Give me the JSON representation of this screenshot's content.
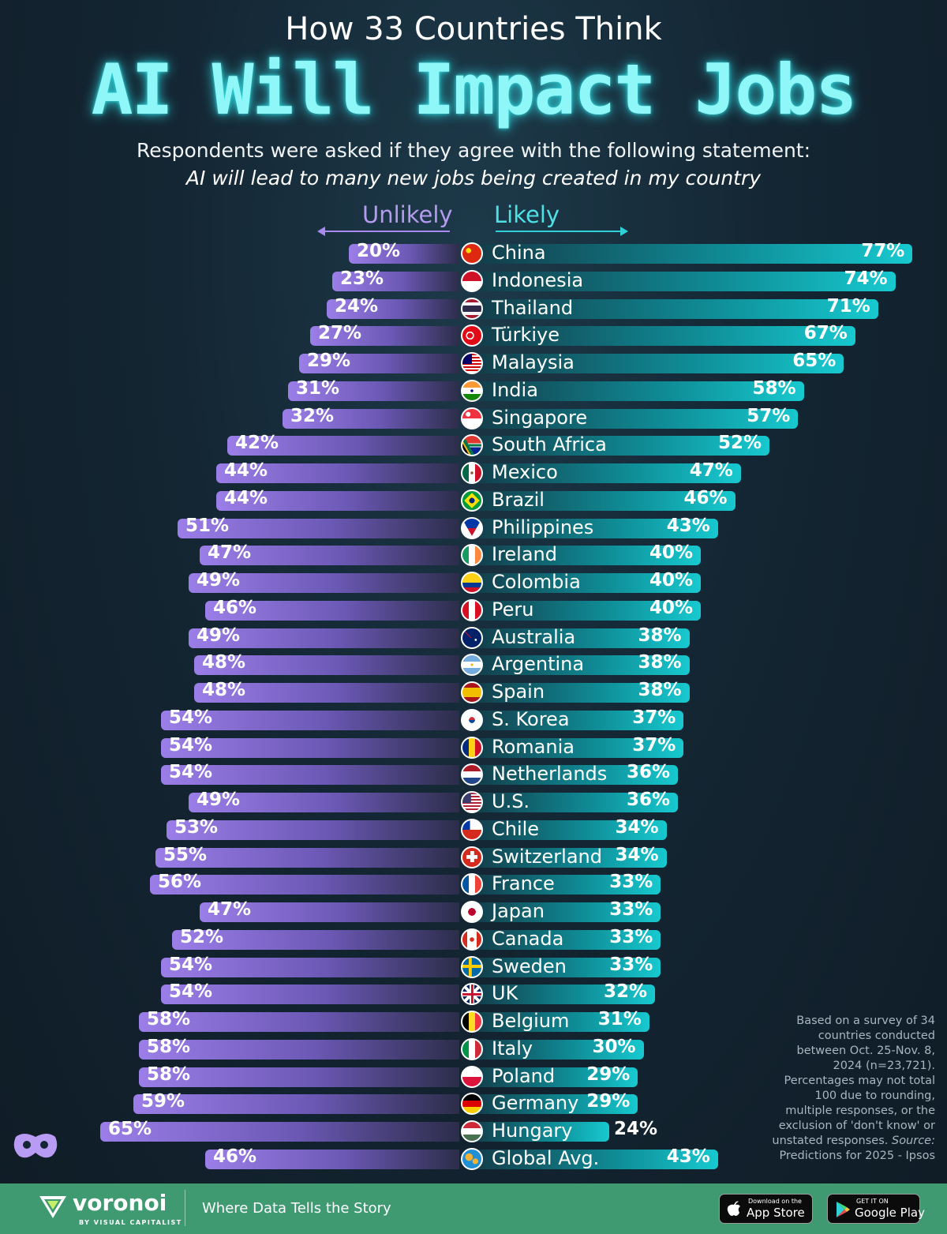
{
  "header": {
    "supertitle": "How 33 Countries Think",
    "title": "AI Will Impact Jobs",
    "question": "Respondents were asked if they agree with the following statement:",
    "statement": "AI will lead to many new jobs being created in my country"
  },
  "colors": {
    "unlikely": "#9b7ee8",
    "likely": "#17c9cf",
    "title_glow": "#8ff7f7",
    "footer": "#3f9a72"
  },
  "chart_data": {
    "type": "bar",
    "orientation": "horizontal-diverging",
    "title": "AI Will Impact Jobs",
    "subtitle": "AI will lead to many new jobs being created in my country",
    "unit": "%",
    "left_label": "Unlikely",
    "right_label": "Likely",
    "series": [
      {
        "name": "Unlikely",
        "values": [
          20,
          23,
          24,
          27,
          29,
          31,
          32,
          42,
          44,
          44,
          51,
          47,
          49,
          46,
          49,
          48,
          48,
          54,
          54,
          54,
          49,
          53,
          55,
          56,
          47,
          52,
          54,
          54,
          58,
          58,
          58,
          59,
          65,
          46
        ]
      },
      {
        "name": "Likely",
        "values": [
          77,
          74,
          71,
          67,
          65,
          58,
          57,
          52,
          47,
          46,
          43,
          40,
          40,
          40,
          38,
          38,
          38,
          37,
          37,
          36,
          36,
          34,
          34,
          33,
          33,
          33,
          33,
          32,
          31,
          30,
          29,
          29,
          24,
          43
        ]
      }
    ],
    "categories": [
      "China",
      "Indonesia",
      "Thailand",
      "Türkiye",
      "Malaysia",
      "India",
      "Singapore",
      "South Africa",
      "Mexico",
      "Brazil",
      "Philippines",
      "Ireland",
      "Colombia",
      "Peru",
      "Australia",
      "Argentina",
      "Spain",
      "S. Korea",
      "Romania",
      "Netherlands",
      "U.S.",
      "Chile",
      "Switzerland",
      "France",
      "Japan",
      "Canada",
      "Sweden",
      "UK",
      "Belgium",
      "Italy",
      "Poland",
      "Germany",
      "Hungary",
      "Global Avg."
    ],
    "flags": [
      "china-flag-icon",
      "indonesia-flag-icon",
      "thailand-flag-icon",
      "turkiye-flag-icon",
      "malaysia-flag-icon",
      "india-flag-icon",
      "singapore-flag-icon",
      "south-africa-flag-icon",
      "mexico-flag-icon",
      "brazil-flag-icon",
      "philippines-flag-icon",
      "ireland-flag-icon",
      "colombia-flag-icon",
      "peru-flag-icon",
      "australia-flag-icon",
      "argentina-flag-icon",
      "spain-flag-icon",
      "s-korea-flag-icon",
      "romania-flag-icon",
      "netherlands-flag-icon",
      "us-flag-icon",
      "chile-flag-icon",
      "switzerland-flag-icon",
      "france-flag-icon",
      "japan-flag-icon",
      "canada-flag-icon",
      "sweden-flag-icon",
      "uk-flag-icon",
      "belgium-flag-icon",
      "italy-flag-icon",
      "poland-flag-icon",
      "germany-flag-icon",
      "hungary-flag-icon",
      "globe-icon"
    ]
  },
  "note": {
    "text": "Based on a survey of 34 countries conducted between Oct. 25-Nov. 8, 2024 (n=23,721). Percentages may not total 100 due to rounding, multiple responses, or the exclusion of 'don't know' or unstated responses.",
    "source_label": "Source:",
    "source": "Predictions for 2025 - Ipsos"
  },
  "footer": {
    "brand": "voronoi",
    "brand_sub": "BY VISUAL CAPITALIST",
    "tagline": "Where Data Tells the Story",
    "app_store_small": "Download on the",
    "app_store_big": "App Store",
    "play_small": "GET IT ON",
    "play_big": "Google Play"
  }
}
